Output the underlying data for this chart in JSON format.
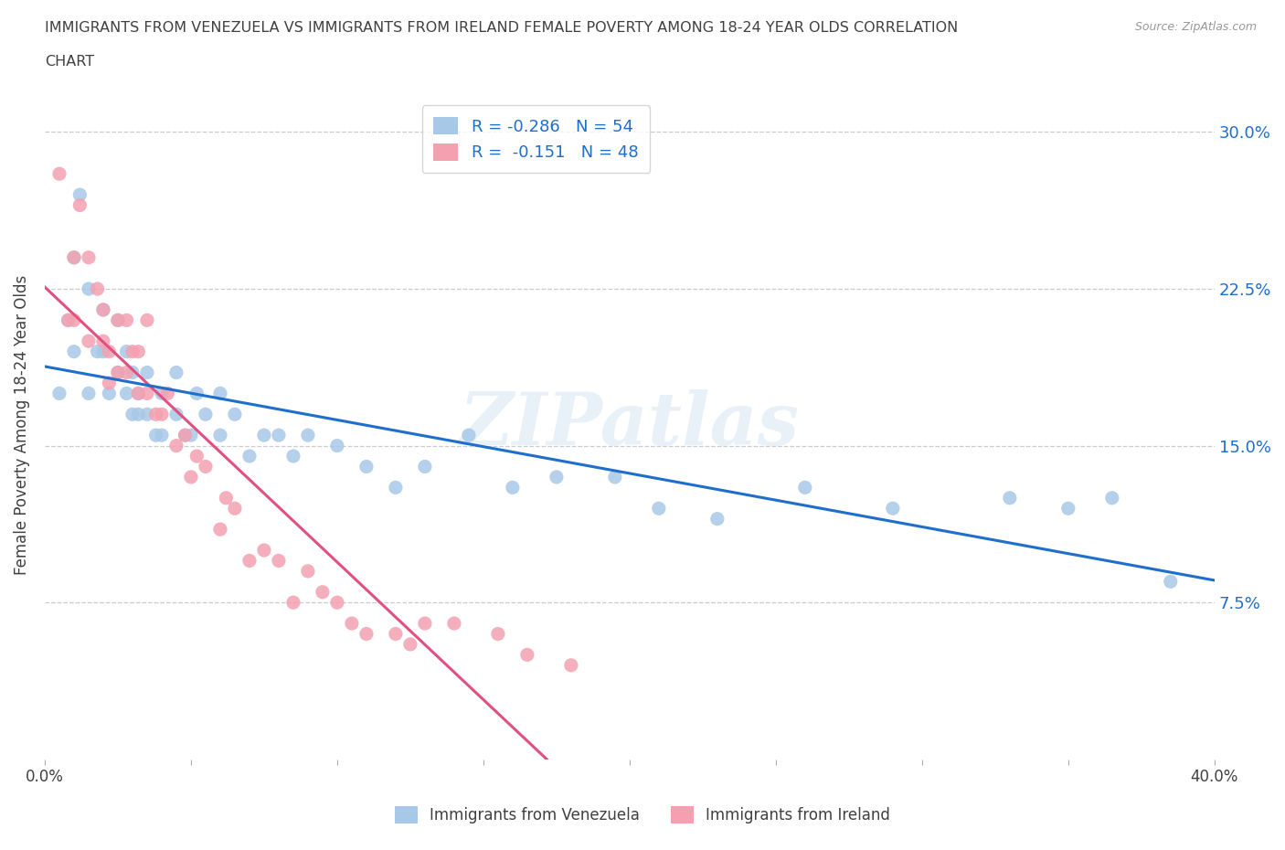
{
  "title_line1": "IMMIGRANTS FROM VENEZUELA VS IMMIGRANTS FROM IRELAND FEMALE POVERTY AMONG 18-24 YEAR OLDS CORRELATION",
  "title_line2": "CHART",
  "source": "Source: ZipAtlas.com",
  "ylabel": "Female Poverty Among 18-24 Year Olds",
  "xlim": [
    0.0,
    0.4
  ],
  "ylim": [
    0.0,
    0.32
  ],
  "ytick_labels": [
    "7.5%",
    "15.0%",
    "22.5%",
    "30.0%"
  ],
  "ytick_values": [
    0.075,
    0.15,
    0.225,
    0.3
  ],
  "xtick_positions": [
    0.0,
    0.05,
    0.1,
    0.15,
    0.2,
    0.25,
    0.3,
    0.35,
    0.4
  ],
  "xtick_labels": [
    "0.0%",
    "",
    "",
    "",
    "",
    "",
    "",
    "",
    "40.0%"
  ],
  "watermark": "ZIPatlas",
  "color_venezuela": "#a8c8e8",
  "color_ireland": "#f4a0b0",
  "trendline_venezuela_color": "#1e6fcc",
  "trendline_ireland_solid_color": "#e05080",
  "trendline_ireland_dashed_color": "#f4a0b0",
  "R_venezuela": -0.286,
  "N_venezuela": 54,
  "R_ireland": -0.151,
  "N_ireland": 48,
  "venezuela_x": [
    0.005,
    0.008,
    0.01,
    0.01,
    0.012,
    0.015,
    0.015,
    0.018,
    0.02,
    0.02,
    0.022,
    0.025,
    0.025,
    0.028,
    0.028,
    0.03,
    0.03,
    0.032,
    0.032,
    0.035,
    0.035,
    0.038,
    0.04,
    0.04,
    0.045,
    0.045,
    0.048,
    0.05,
    0.052,
    0.055,
    0.06,
    0.06,
    0.065,
    0.07,
    0.075,
    0.08,
    0.085,
    0.09,
    0.1,
    0.11,
    0.12,
    0.13,
    0.145,
    0.16,
    0.175,
    0.195,
    0.21,
    0.23,
    0.26,
    0.29,
    0.33,
    0.35,
    0.365,
    0.385
  ],
  "venezuela_y": [
    0.175,
    0.21,
    0.195,
    0.24,
    0.27,
    0.175,
    0.225,
    0.195,
    0.195,
    0.215,
    0.175,
    0.185,
    0.21,
    0.175,
    0.195,
    0.165,
    0.185,
    0.165,
    0.175,
    0.165,
    0.185,
    0.155,
    0.155,
    0.175,
    0.165,
    0.185,
    0.155,
    0.155,
    0.175,
    0.165,
    0.155,
    0.175,
    0.165,
    0.145,
    0.155,
    0.155,
    0.145,
    0.155,
    0.15,
    0.14,
    0.13,
    0.14,
    0.155,
    0.13,
    0.135,
    0.135,
    0.12,
    0.115,
    0.13,
    0.12,
    0.125,
    0.12,
    0.125,
    0.085
  ],
  "ireland_x": [
    0.005,
    0.008,
    0.01,
    0.01,
    0.012,
    0.015,
    0.015,
    0.018,
    0.02,
    0.02,
    0.022,
    0.022,
    0.025,
    0.025,
    0.028,
    0.028,
    0.03,
    0.032,
    0.032,
    0.035,
    0.035,
    0.038,
    0.04,
    0.042,
    0.045,
    0.048,
    0.05,
    0.052,
    0.055,
    0.06,
    0.062,
    0.065,
    0.07,
    0.075,
    0.08,
    0.085,
    0.09,
    0.095,
    0.1,
    0.105,
    0.11,
    0.12,
    0.125,
    0.13,
    0.14,
    0.155,
    0.165,
    0.18
  ],
  "ireland_y": [
    0.28,
    0.21,
    0.21,
    0.24,
    0.265,
    0.2,
    0.24,
    0.225,
    0.2,
    0.215,
    0.18,
    0.195,
    0.185,
    0.21,
    0.185,
    0.21,
    0.195,
    0.175,
    0.195,
    0.175,
    0.21,
    0.165,
    0.165,
    0.175,
    0.15,
    0.155,
    0.135,
    0.145,
    0.14,
    0.11,
    0.125,
    0.12,
    0.095,
    0.1,
    0.095,
    0.075,
    0.09,
    0.08,
    0.075,
    0.065,
    0.06,
    0.06,
    0.055,
    0.065,
    0.065,
    0.06,
    0.05,
    0.045
  ],
  "ireland_trendline_solid_x_end": 0.175,
  "ireland_trendline_dashed_x_end": 0.35,
  "legend_label_venezuela": "Immigrants from Venezuela",
  "legend_label_ireland": "Immigrants from Ireland",
  "background_color": "#ffffff",
  "grid_color": "#cccccc",
  "title_color": "#404040",
  "axis_label_color": "#404040"
}
